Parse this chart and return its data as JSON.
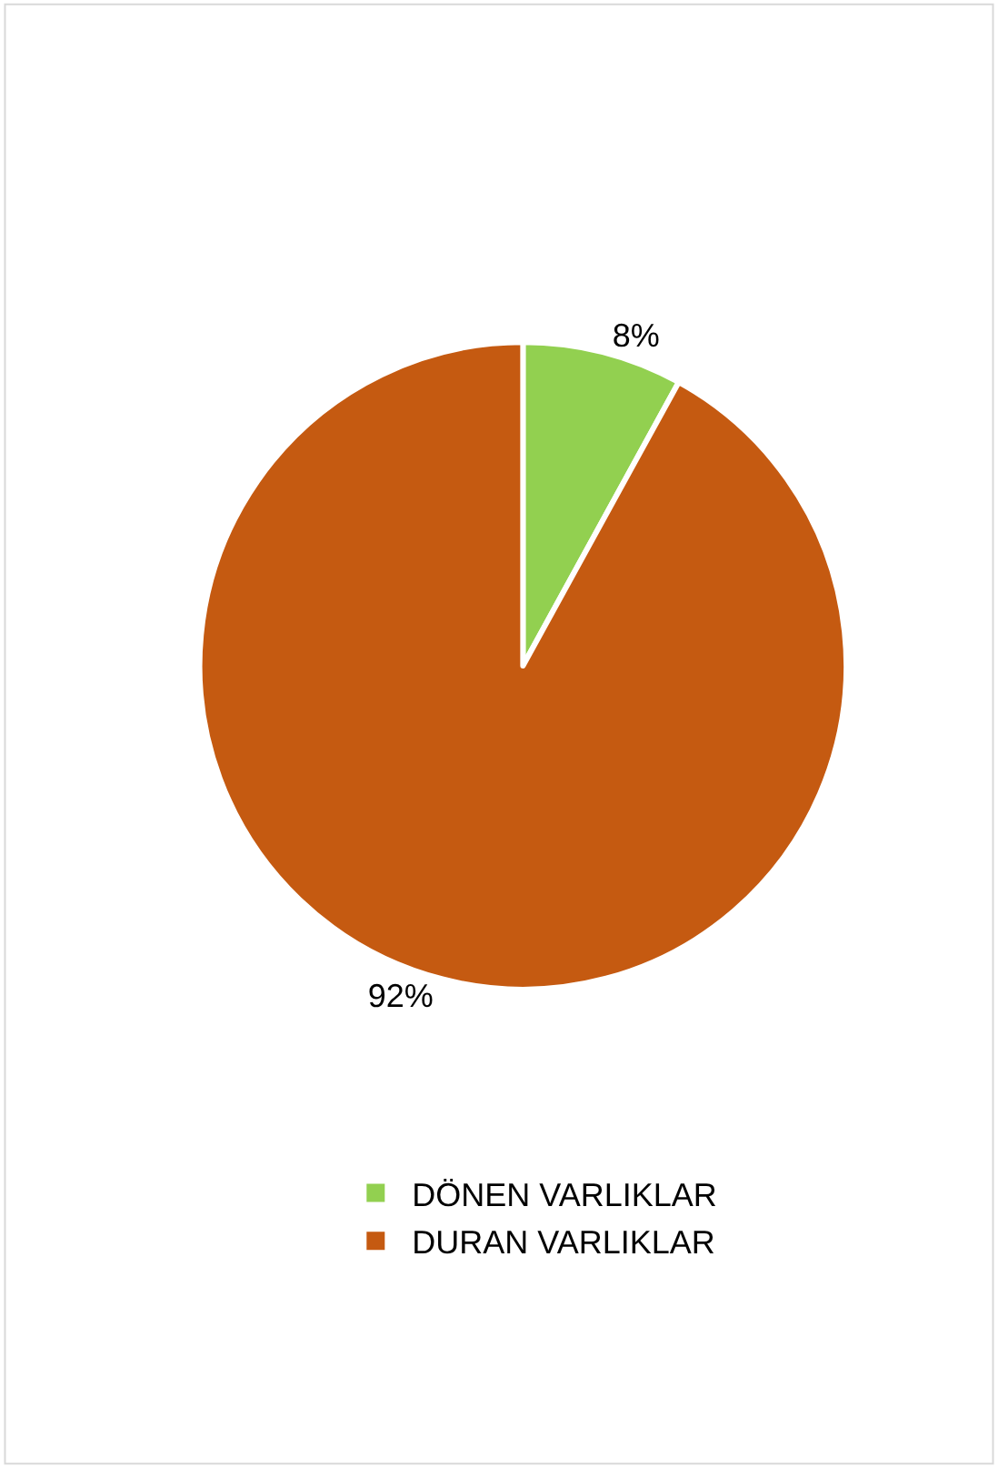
{
  "chart_data": {
    "type": "pie",
    "categories": [
      "DÖNEN VARLIKLAR",
      "DURAN VARLIKLAR"
    ],
    "values": [
      8,
      92
    ],
    "colors": [
      "#92d050",
      "#c55a11"
    ],
    "value_labels": [
      "8%",
      "92%"
    ],
    "legend": "bottom"
  }
}
